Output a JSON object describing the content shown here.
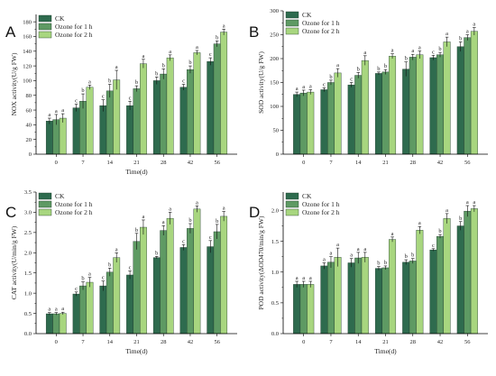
{
  "legend": [
    "CK",
    "Ozone for 1 h",
    "Ozone for 2 h"
  ],
  "colors": {
    "CK": "#2e6b4e",
    "Ozone for 1 h": "#5e9a63",
    "Ozone for 2 h": "#a8d67f"
  },
  "chart_data": [
    {
      "type": "bar",
      "panel": "A",
      "categories": [
        "0",
        "7",
        "14",
        "21",
        "28",
        "42",
        "56"
      ],
      "xlabel": "Time(d)",
      "ylabel": "NOX activity(U/g FW)",
      "ylim": [
        0,
        190
      ],
      "yticks": [
        0,
        20,
        40,
        60,
        80,
        100,
        120,
        140,
        160,
        180
      ],
      "series": [
        {
          "name": "CK",
          "values": [
            45,
            63,
            66,
            66,
            100,
            91,
            126
          ],
          "errors": [
            4,
            5,
            8,
            6,
            5,
            4,
            5
          ],
          "sig": [
            "a",
            "c",
            "c",
            "c",
            "b",
            "c",
            "c"
          ]
        },
        {
          "name": "Ozone for 1 h",
          "values": [
            47,
            72,
            86,
            89,
            109,
            115,
            150
          ],
          "errors": [
            7,
            10,
            9,
            4,
            7,
            5,
            4
          ],
          "sig": [
            "a",
            "b",
            "b",
            "b",
            "b",
            "b",
            "b"
          ]
        },
        {
          "name": "Ozone for 2 h",
          "values": [
            49,
            91,
            101,
            123,
            131,
            138,
            166
          ],
          "errors": [
            6,
            3,
            13,
            6,
            4,
            3,
            4
          ],
          "sig": [
            "a",
            "a",
            "a",
            "a",
            "a",
            "a",
            "a"
          ]
        }
      ]
    },
    {
      "type": "bar",
      "panel": "B",
      "categories": [
        "0",
        "7",
        "14",
        "21",
        "28",
        "42",
        "56"
      ],
      "xlabel": "",
      "ylabel": "SOD activity(U/g FW)",
      "ylim": [
        0,
        300
      ],
      "yticks": [
        0,
        50,
        100,
        150,
        200,
        250,
        300
      ],
      "series": [
        {
          "name": "CK",
          "values": [
            125,
            135,
            145,
            169,
            178,
            202,
            225
          ],
          "errors": [
            5,
            4,
            5,
            3,
            15,
            5,
            10
          ],
          "sig": [
            "a",
            "c",
            "c",
            "b",
            "b",
            "c",
            "b"
          ]
        },
        {
          "name": "Ozone for 1 h",
          "values": [
            128,
            150,
            165,
            172,
            203,
            208,
            244
          ],
          "errors": [
            6,
            5,
            6,
            5,
            6,
            5,
            6
          ],
          "sig": [
            "a",
            "b",
            "b",
            "b",
            "a",
            "b",
            "a"
          ]
        },
        {
          "name": "Ozone for 2 h",
          "values": [
            130,
            170,
            196,
            205,
            208,
            235,
            257
          ],
          "errors": [
            5,
            9,
            10,
            5,
            8,
            10,
            8
          ],
          "sig": [
            "a",
            "a",
            "a",
            "a",
            "a",
            "a",
            "a"
          ]
        }
      ]
    },
    {
      "type": "bar",
      "panel": "C",
      "categories": [
        "0",
        "7",
        "14",
        "21",
        "28",
        "42",
        "56"
      ],
      "xlabel": "Time(d)",
      "ylabel": "CAT activity(U/min/g FW)",
      "ylim": [
        0,
        3.5
      ],
      "yticks": [
        0.0,
        0.5,
        1.0,
        1.5,
        2.0,
        2.5,
        3.0,
        3.5
      ],
      "tick_decimals": 1,
      "series": [
        {
          "name": "CK",
          "values": [
            0.49,
            0.98,
            1.18,
            1.45,
            1.88,
            2.13,
            2.15
          ],
          "errors": [
            0.03,
            0.05,
            0.12,
            0.1,
            0.03,
            0.07,
            0.15
          ],
          "sig": [
            "a",
            "c",
            "c",
            "c",
            "b",
            "c",
            "c"
          ]
        },
        {
          "name": "Ozone for 1 h",
          "values": [
            0.49,
            1.18,
            1.52,
            2.28,
            2.55,
            2.6,
            2.52
          ],
          "errors": [
            0.03,
            0.1,
            0.1,
            0.2,
            0.12,
            0.12,
            0.18
          ],
          "sig": [
            "a",
            "b",
            "b",
            "b",
            "a",
            "b",
            "b"
          ]
        },
        {
          "name": "Ozone for 2 h",
          "values": [
            0.5,
            1.27,
            1.88,
            2.63,
            2.85,
            3.08,
            2.9
          ],
          "errors": [
            0.03,
            0.12,
            0.12,
            0.18,
            0.15,
            0.08,
            0.12
          ],
          "sig": [
            "a",
            "a",
            "a",
            "a",
            "a",
            "a",
            "a"
          ]
        }
      ]
    },
    {
      "type": "bar",
      "panel": "D",
      "categories": [
        "0",
        "7",
        "14",
        "21",
        "28",
        "42",
        "56"
      ],
      "xlabel": "Time(d)",
      "ylabel": "POD activity(ΔOD470/min/g FW)",
      "ylim": [
        0,
        2.3
      ],
      "yticks": [
        0.0,
        0.5,
        1.0,
        1.5,
        2.0
      ],
      "tick_decimals": 1,
      "series": [
        {
          "name": "CK",
          "values": [
            0.8,
            1.1,
            1.15,
            1.06,
            1.16,
            1.36,
            1.75
          ],
          "errors": [
            0.05,
            0.05,
            0.07,
            0.03,
            0.04,
            0.02,
            0.07
          ],
          "sig": [
            "a",
            "a",
            "a",
            "b",
            "b",
            "c",
            "b"
          ]
        },
        {
          "name": "Ozone for 1 h",
          "values": [
            0.8,
            1.16,
            1.23,
            1.07,
            1.18,
            1.58,
            1.99
          ],
          "errors": [
            0.05,
            0.09,
            0.09,
            0.03,
            0.04,
            0.03,
            0.09
          ],
          "sig": [
            "a",
            "a",
            "a",
            "b",
            "b",
            "b",
            "a"
          ]
        },
        {
          "name": "Ozone for 2 h",
          "values": [
            0.8,
            1.24,
            1.24,
            1.53,
            1.68,
            1.87,
            2.03
          ],
          "errors": [
            0.05,
            0.15,
            0.08,
            0.04,
            0.06,
            0.08,
            0.05
          ],
          "sig": [
            "a",
            "a",
            "a",
            "a",
            "a",
            "a",
            "a"
          ]
        }
      ]
    }
  ]
}
